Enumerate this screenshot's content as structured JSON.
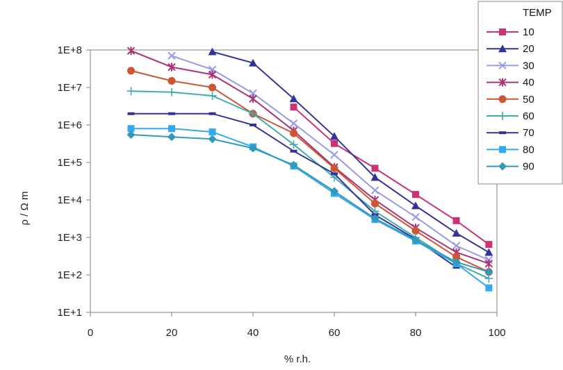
{
  "chart_data": {
    "type": "line",
    "title": "",
    "xlabel": "% r.h.",
    "ylabel": "ρ / Ω m",
    "xlim": [
      0,
      100
    ],
    "ylim_log10": [
      1,
      8
    ],
    "y_scale": "log",
    "x_ticks": [
      "0",
      "20",
      "40",
      "60",
      "80",
      "100"
    ],
    "y_ticks": [
      "1E+1",
      "1E+2",
      "1E+3",
      "1E+4",
      "1E+5",
      "1E+6",
      "1E+7",
      "1E+8"
    ],
    "grid": false,
    "legend": {
      "title": "TEMP",
      "placement": "top-right"
    },
    "x": [
      10,
      20,
      30,
      40,
      50,
      60,
      70,
      80,
      90,
      98
    ],
    "series": [
      {
        "name": "10",
        "color": "#cc3377",
        "marker": "square",
        "values": [
          null,
          null,
          null,
          null,
          3000000,
          320000,
          70000,
          14000,
          2800,
          650
        ]
      },
      {
        "name": "20",
        "color": "#333399",
        "marker": "triangle",
        "values": [
          null,
          null,
          90000000,
          45000000,
          5000000,
          500000,
          40000,
          7000,
          1300,
          400
        ]
      },
      {
        "name": "30",
        "color": "#9999ee",
        "marker": "x",
        "values": [
          null,
          70000000,
          30000000,
          7000000,
          1100000,
          160000,
          18000,
          3500,
          600,
          250
        ]
      },
      {
        "name": "40",
        "color": "#aa3377",
        "marker": "star",
        "values": [
          95000000,
          35000000,
          22000000,
          5000000,
          700000,
          75000,
          10000,
          1800,
          400,
          200
        ]
      },
      {
        "name": "50",
        "color": "#cc5533",
        "marker": "circle",
        "values": [
          28000000,
          15000000,
          10000000,
          2000000,
          600000,
          70000,
          8000,
          1500,
          300,
          120
        ]
      },
      {
        "name": "60",
        "color": "#44aaaa",
        "marker": "plus",
        "values": [
          8000000,
          7500000,
          6000000,
          2000000,
          300000,
          40000,
          5000,
          1000,
          200,
          80
        ]
      },
      {
        "name": "70",
        "color": "#333399",
        "marker": "dash",
        "values": [
          2000000,
          2000000,
          2000000,
          1000000,
          200000,
          50000,
          4000,
          900,
          160,
          null
        ]
      },
      {
        "name": "80",
        "color": "#33aaee",
        "marker": "square",
        "values": [
          800000,
          800000,
          650000,
          260000,
          80000,
          15000,
          3000,
          800,
          200,
          45
        ]
      },
      {
        "name": "90",
        "color": "#3399bb",
        "marker": "diamond",
        "values": [
          550000,
          480000,
          420000,
          240000,
          85000,
          17000,
          3200,
          850,
          220,
          120
        ]
      }
    ]
  }
}
